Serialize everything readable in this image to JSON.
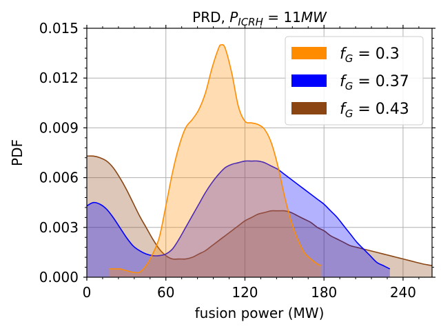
{
  "chart_data": {
    "type": "area",
    "title": "PRD, ",
    "title_math": {
      "var": "P",
      "sub": "ICRH",
      "rest": " = 11",
      "unit": "MW"
    },
    "xlabel": "fusion power (MW)",
    "ylabel": "PDF",
    "xlim": [
      0,
      262
    ],
    "ylim": [
      0,
      0.015
    ],
    "xticks": [
      0,
      60,
      120,
      180,
      240
    ],
    "yticks": [
      0,
      0.003,
      0.006,
      0.009,
      0.012,
      0.015
    ],
    "ytick_labels": [
      "0.000",
      "0.003",
      "0.006",
      "0.009",
      "0.012",
      "0.015"
    ],
    "grid": true,
    "legend_position": "top-right",
    "series": [
      {
        "name": "f_G = 0.43",
        "legend_var": "f",
        "legend_sub": "G",
        "legend_value": "= 0.43",
        "color": "#8b4513",
        "x": [
          0,
          5,
          10,
          15,
          20,
          25,
          30,
          35,
          40,
          45,
          50,
          55,
          60,
          65,
          70,
          75,
          80,
          85,
          90,
          95,
          100,
          105,
          110,
          115,
          120,
          125,
          130,
          135,
          140,
          145,
          150,
          155,
          160,
          165,
          170,
          175,
          180,
          185,
          190,
          195,
          200,
          205,
          210,
          215,
          220,
          225,
          230,
          235,
          240,
          245,
          250,
          255,
          262
        ],
        "y": [
          0.0073,
          0.0073,
          0.0072,
          0.007,
          0.0066,
          0.006,
          0.0053,
          0.0045,
          0.0037,
          0.003,
          0.0023,
          0.0017,
          0.0013,
          0.0011,
          0.0011,
          0.0011,
          0.0012,
          0.0014,
          0.0016,
          0.0019,
          0.0022,
          0.0025,
          0.0028,
          0.0031,
          0.0034,
          0.0036,
          0.0038,
          0.0039,
          0.004,
          0.004,
          0.004,
          0.0039,
          0.0037,
          0.0035,
          0.0033,
          0.003,
          0.0028,
          0.0025,
          0.0023,
          0.0021,
          0.0019,
          0.0018,
          0.0017,
          0.0016,
          0.0015,
          0.0014,
          0.0013,
          0.0012,
          0.0011,
          0.001,
          0.0009,
          0.0008,
          0.0007
        ]
      },
      {
        "name": "f_G = 0.37",
        "legend_var": "f",
        "legend_sub": "G",
        "legend_value": "= 0.37",
        "color": "#0000ff",
        "x": [
          0,
          5,
          10,
          15,
          20,
          25,
          30,
          35,
          40,
          45,
          50,
          55,
          60,
          65,
          70,
          75,
          80,
          85,
          90,
          95,
          100,
          105,
          110,
          115,
          120,
          125,
          130,
          135,
          140,
          145,
          150,
          155,
          160,
          165,
          170,
          175,
          180,
          185,
          190,
          195,
          200,
          205,
          210,
          215,
          220,
          225,
          230
        ],
        "y": [
          0.0043,
          0.0045,
          0.0044,
          0.0041,
          0.0036,
          0.003,
          0.0024,
          0.0019,
          0.0016,
          0.0014,
          0.0013,
          0.0013,
          0.0014,
          0.0017,
          0.0023,
          0.003,
          0.0037,
          0.0044,
          0.0051,
          0.0057,
          0.0062,
          0.0066,
          0.0068,
          0.0069,
          0.007,
          0.007,
          0.007,
          0.0069,
          0.0067,
          0.0065,
          0.0062,
          0.0059,
          0.0056,
          0.0053,
          0.005,
          0.0047,
          0.0044,
          0.004,
          0.0036,
          0.0031,
          0.0026,
          0.0021,
          0.0017,
          0.0013,
          0.0009,
          0.0007,
          0.0005
        ]
      },
      {
        "name": "f_G = 0.3",
        "legend_var": "f",
        "legend_sub": "G",
        "legend_value": "= 0.3",
        "color": "#ff8c00",
        "x": [
          17,
          20,
          25,
          30,
          35,
          40,
          45,
          50,
          55,
          60,
          65,
          70,
          75,
          80,
          85,
          90,
          95,
          100,
          102,
          105,
          110,
          115,
          120,
          125,
          130,
          135,
          140,
          145,
          150,
          155,
          160,
          165,
          170,
          175,
          178
        ],
        "y": [
          0.0005,
          0.0005,
          0.0005,
          0.0004,
          0.0003,
          0.0003,
          0.0007,
          0.0014,
          0.0024,
          0.0043,
          0.0063,
          0.0079,
          0.009,
          0.0095,
          0.0101,
          0.0111,
          0.0126,
          0.0138,
          0.014,
          0.0138,
          0.0123,
          0.0103,
          0.0094,
          0.0093,
          0.0092,
          0.0089,
          0.0081,
          0.0067,
          0.0049,
          0.0034,
          0.0023,
          0.0015,
          0.0011,
          0.0008,
          0.0007
        ]
      }
    ]
  }
}
